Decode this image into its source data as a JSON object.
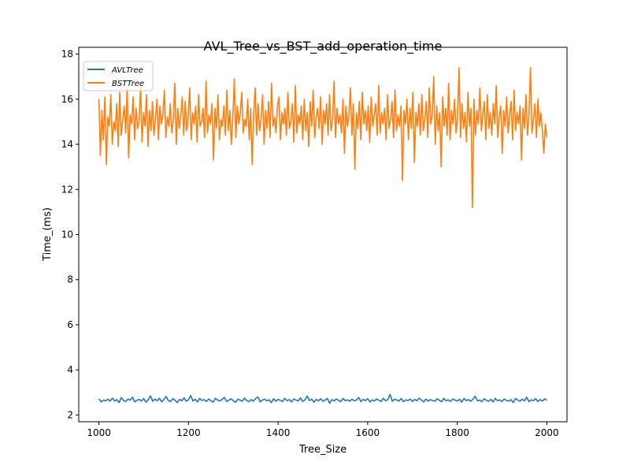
{
  "chart_data": {
    "type": "line",
    "title": "AVL_Tree_vs_BST_add_operation_time",
    "xlabel": "Tree_Size",
    "ylabel": "Time_(ms)",
    "xlim": [
      955,
      2045
    ],
    "ylim": [
      1.7,
      18.3
    ],
    "xticks": [
      1000,
      1200,
      1400,
      1600,
      1800,
      2000
    ],
    "yticks": [
      2,
      4,
      6,
      8,
      10,
      12,
      14,
      16,
      18
    ],
    "grid": false,
    "legend_position": "top-left",
    "x_start": 1000,
    "x_step": 5,
    "series": [
      {
        "name": "AVLTree",
        "color": "#1f77b4",
        "values": [
          2.72,
          2.58,
          2.66,
          2.63,
          2.7,
          2.61,
          2.75,
          2.62,
          2.68,
          2.55,
          2.77,
          2.64,
          2.6,
          2.71,
          2.66,
          2.79,
          2.58,
          2.65,
          2.69,
          2.62,
          2.73,
          2.57,
          2.67,
          2.85,
          2.61,
          2.7,
          2.63,
          2.74,
          2.59,
          2.68,
          2.82,
          2.64,
          2.6,
          2.72,
          2.66,
          2.55,
          2.69,
          2.63,
          2.76,
          2.61,
          2.67,
          2.86,
          2.62,
          2.7,
          2.58,
          2.73,
          2.65,
          2.68,
          2.6,
          2.71,
          2.64,
          2.57,
          2.74,
          2.66,
          2.62,
          2.69,
          2.78,
          2.6,
          2.65,
          2.72,
          2.63,
          2.56,
          2.7,
          2.66,
          2.61,
          2.75,
          2.64,
          2.59,
          2.68,
          2.62,
          2.73,
          2.8,
          2.58,
          2.66,
          2.7,
          2.63,
          2.67,
          2.55,
          2.72,
          2.61,
          2.69,
          2.65,
          2.6,
          2.74,
          2.63,
          2.68,
          2.58,
          2.71,
          2.66,
          2.62,
          2.76,
          2.6,
          2.67,
          2.84,
          2.64,
          2.7,
          2.57,
          2.69,
          2.63,
          2.72,
          2.61,
          2.66,
          2.74,
          2.52,
          2.68,
          2.62,
          2.71,
          2.65,
          2.59,
          2.73,
          2.64,
          2.67,
          2.61,
          2.7,
          2.63,
          2.66,
          2.78,
          2.6,
          2.69,
          2.64,
          2.72,
          2.58,
          2.67,
          2.62,
          2.71,
          2.65,
          2.6,
          2.74,
          2.63,
          2.68,
          2.91,
          2.61,
          2.7,
          2.66,
          2.62,
          2.73,
          2.59,
          2.67,
          2.64,
          2.71,
          2.6,
          2.69,
          2.63,
          2.75,
          2.66,
          2.58,
          2.7,
          2.62,
          2.68,
          2.64,
          2.61,
          2.72,
          2.65,
          2.59,
          2.74,
          2.63,
          2.67,
          2.6,
          2.71,
          2.66,
          2.62,
          2.69,
          2.57,
          2.73,
          2.64,
          2.68,
          2.61,
          2.7,
          2.83,
          2.63,
          2.66,
          2.59,
          2.72,
          2.65,
          2.61,
          2.69,
          2.58,
          2.74,
          2.63,
          2.67,
          2.6,
          2.71,
          2.64,
          2.62,
          2.68,
          2.55,
          2.73,
          2.66,
          2.61,
          2.7,
          2.63,
          2.79,
          2.59,
          2.67,
          2.64,
          2.72,
          2.6,
          2.68,
          2.62,
          2.71,
          2.65
        ]
      },
      {
        "name": "BSTTree",
        "color": "#ff7f0e",
        "values": [
          16.0,
          13.5,
          15.5,
          14.2,
          16.1,
          13.1,
          15.2,
          14.8,
          16.2,
          14.0,
          15.0,
          14.6,
          15.8,
          13.9,
          16.3,
          14.4,
          15.1,
          15.7,
          14.5,
          16.5,
          13.4,
          15.3,
          14.9,
          16.1,
          14.2,
          15.6,
          14.7,
          15.0,
          16.6,
          14.1,
          15.4,
          14.8,
          16.2,
          13.9,
          15.5,
          14.6,
          15.9,
          14.4,
          15.1,
          16.0,
          14.2,
          15.7,
          14.9,
          15.3,
          16.4,
          14.3,
          15.2,
          14.8,
          15.8,
          14.5,
          15.1,
          16.7,
          14.0,
          15.6,
          14.7,
          15.3,
          16.1,
          14.4,
          15.9,
          14.6,
          15.2,
          16.5,
          14.2,
          15.4,
          14.9,
          15.7,
          14.1,
          16.2,
          14.8,
          15.0,
          15.6,
          14.3,
          16.8,
          14.5,
          15.3,
          14.9,
          15.8,
          13.3,
          15.6,
          14.7,
          16.2,
          14.2,
          15.1,
          14.8,
          15.7,
          14.4,
          16.4,
          14.6,
          15.5,
          14.0,
          15.2,
          16.9,
          14.3,
          15.7,
          14.9,
          15.4,
          16.3,
          14.5,
          15.1,
          14.8,
          16.0,
          14.2,
          15.6,
          13.1,
          15.3,
          16.5,
          14.4,
          15.8,
          14.6,
          15.1,
          16.2,
          14.0,
          15.5,
          14.7,
          15.9,
          14.3,
          16.7,
          14.8,
          15.2,
          14.5,
          15.7,
          16.1,
          14.2,
          15.4,
          14.9,
          15.6,
          14.4,
          16.3,
          14.7,
          15.0,
          15.8,
          14.1,
          16.6,
          14.5,
          15.3,
          14.9,
          15.7,
          14.2,
          16.0,
          14.6,
          15.4,
          13.9,
          15.9,
          14.8,
          16.4,
          14.3,
          15.2,
          15.6,
          14.7,
          16.1,
          14.0,
          15.5,
          14.9,
          15.8,
          14.4,
          16.2,
          14.6,
          15.1,
          16.8,
          14.3,
          15.6,
          14.9,
          15.3,
          14.5,
          16.0,
          13.6,
          15.7,
          14.8,
          15.2,
          16.5,
          14.4,
          15.8,
          12.9,
          15.4,
          14.7,
          15.9,
          14.2,
          16.3,
          14.9,
          15.5,
          14.6,
          15.7,
          14.1,
          16.1,
          14.8,
          15.3,
          15.8,
          14.4,
          16.6,
          14.5,
          15.4,
          14.9,
          15.6,
          14.2,
          16.2,
          14.7,
          15.1,
          15.9,
          14.3,
          16.4,
          14.6,
          15.3,
          14.8,
          15.7,
          12.4,
          15.5,
          14.9,
          16.0,
          14.2,
          15.6,
          14.7,
          16.3,
          13.2,
          15.4,
          14.8,
          15.8,
          14.4,
          16.2,
          14.6,
          15.1,
          15.9,
          14.3,
          16.5,
          14.9,
          15.3,
          17.0,
          14.0,
          15.7,
          14.6,
          15.4,
          13.0,
          16.1,
          14.8,
          15.6,
          14.4,
          16.7,
          14.2,
          15.5,
          14.9,
          16.0,
          14.5,
          15.2,
          17.4,
          14.3,
          15.8,
          14.7,
          15.4,
          14.1,
          16.3,
          14.8,
          15.6,
          11.2,
          16.0,
          14.4,
          15.5,
          14.9,
          16.5,
          14.6,
          15.3,
          15.9,
          14.2,
          16.2,
          14.7,
          15.4,
          14.4,
          15.8,
          14.9,
          16.6,
          14.3,
          15.2,
          15.7,
          13.6,
          15.5,
          14.8,
          16.1,
          14.5,
          15.3,
          15.9,
          14.2,
          16.4,
          14.6,
          15.4,
          14.9,
          15.7,
          13.3,
          15.6,
          14.7,
          16.2,
          14.4,
          15.3,
          17.4,
          14.5,
          15.1,
          15.8,
          14.3,
          16.0,
          14.8,
          15.4,
          14.6,
          13.6,
          14.9,
          14.3
        ]
      }
    ]
  }
}
